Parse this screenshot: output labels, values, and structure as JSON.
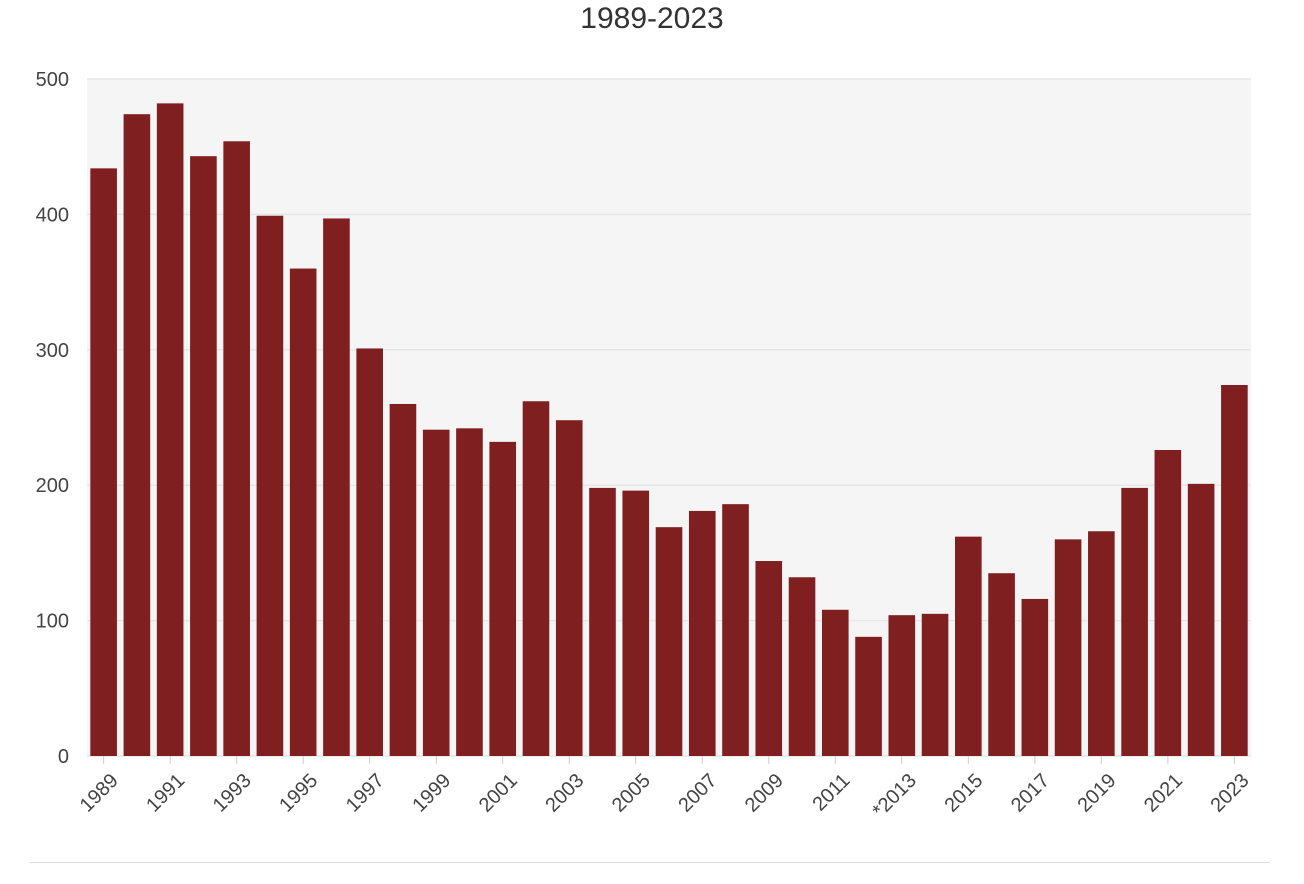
{
  "chart_data": {
    "type": "bar",
    "title": "1989-2023",
    "xlabel": "",
    "ylabel": "",
    "ylim": [
      0,
      500
    ],
    "yticks": [
      0,
      100,
      200,
      300,
      400,
      500
    ],
    "grid": true,
    "legend": "none",
    "colors": {
      "bar": "#7f1f1f",
      "plot_bg": "#f5f5f5",
      "grid": "#e6e6e6"
    },
    "categories": [
      "1989",
      "1990",
      "1991",
      "1992",
      "1993",
      "1994",
      "1995",
      "1996",
      "1997",
      "1998",
      "1999",
      "2000",
      "2001",
      "2002",
      "2003",
      "2004",
      "2005",
      "2006",
      "2007",
      "2008",
      "2009",
      "2010",
      "2011",
      "2012",
      "2013",
      "2014",
      "2015",
      "2016",
      "2017",
      "2018",
      "2019",
      "2020",
      "2021",
      "2022",
      "2023"
    ],
    "tick_labels": [
      "1989",
      "",
      "1991",
      "",
      "1993",
      "",
      "1995",
      "",
      "1997",
      "",
      "1999",
      "",
      "2001",
      "",
      "2003",
      "",
      "2005",
      "",
      "2007",
      "",
      "2009",
      "",
      "2011",
      "",
      "*2013",
      "",
      "2015",
      "",
      "2017",
      "",
      "2019",
      "",
      "2021",
      "",
      "2023"
    ],
    "values": [
      434,
      474,
      482,
      443,
      454,
      399,
      360,
      397,
      301,
      260,
      241,
      242,
      232,
      262,
      248,
      198,
      196,
      169,
      181,
      186,
      144,
      132,
      108,
      88,
      104,
      105,
      162,
      135,
      116,
      160,
      166,
      198,
      226,
      201,
      274
    ]
  }
}
